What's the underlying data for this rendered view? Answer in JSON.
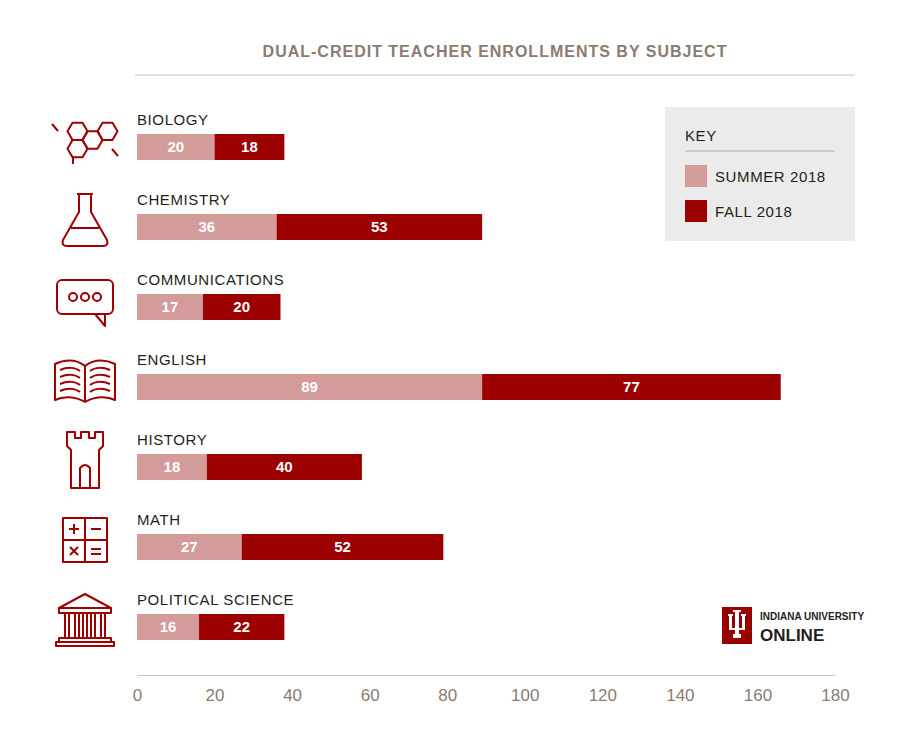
{
  "chart_data": {
    "type": "bar",
    "orientation": "horizontal",
    "stacked": true,
    "data_labels": true,
    "title": "DUAL-CREDIT TEACHER ENROLLMENTS BY SUBJECT",
    "categories": [
      "BIOLOGY",
      "CHEMISTRY",
      "COMMUNICATIONS",
      "ENGLISH",
      "HISTORY",
      "MATH",
      "POLITICAL SCIENCE"
    ],
    "series": [
      {
        "name": "SUMMER 2018",
        "color": "#d49b9b",
        "values": [
          20,
          36,
          17,
          89,
          18,
          27,
          16
        ]
      },
      {
        "name": "FALL 2018",
        "color": "#9c0000",
        "values": [
          18,
          53,
          20,
          77,
          40,
          52,
          22
        ]
      }
    ],
    "xlim": [
      0,
      180
    ],
    "xticks": [
      0,
      20,
      40,
      60,
      80,
      100,
      120,
      140,
      160,
      180
    ],
    "grid": false,
    "legend": "top-right",
    "legend_title": "KEY",
    "annotations": [
      "INDIANA UNIVERSITY",
      "ONLINE"
    ]
  }
}
